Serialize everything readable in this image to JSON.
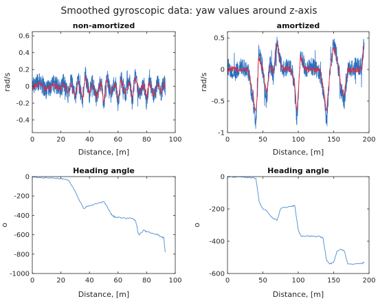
{
  "figure_title": "Smoothed gyroscopic data: yaw values around z-axis",
  "colors": {
    "raw": "#2a6fbe",
    "smoothed": "#e8283c",
    "heading": "#5a95d6",
    "axes": "#262626"
  },
  "chart_data": [
    {
      "type": "line",
      "title": "non-amortized",
      "xlabel": "Distance, [m]",
      "ylabel": "rad/s",
      "xlim": [
        0,
        100
      ],
      "ylim": [
        -0.55,
        0.65
      ],
      "xticks": [
        0,
        20,
        40,
        60,
        80,
        100
      ],
      "yticks": [
        -0.4,
        -0.2,
        0,
        0.2,
        0.4,
        0.6
      ],
      "ytick_labels": [
        "-0.4",
        "-0.2",
        "0",
        "0.2",
        "0.4",
        "0.6"
      ],
      "grid": false,
      "series": [
        {
          "x": [
            0,
            5,
            10,
            15,
            20,
            22,
            25,
            27,
            30,
            32,
            35,
            37,
            40,
            42,
            45,
            48,
            50,
            52,
            55,
            58,
            60,
            62,
            65,
            68,
            70,
            72,
            75,
            78,
            80,
            82,
            85,
            88,
            90,
            92,
            93
          ],
          "y": [
            0.02,
            0.05,
            -0.05,
            0.03,
            -0.04,
            0.06,
            -0.1,
            0.08,
            -0.15,
            0.1,
            -0.2,
            0.15,
            -0.1,
            0.05,
            -0.15,
            0.08,
            -0.25,
            0.12,
            -0.1,
            0.06,
            -0.2,
            0.1,
            -0.1,
            0.08,
            -0.2,
            0.15,
            -0.1,
            0.05,
            -0.2,
            0.1,
            -0.15,
            0.08,
            -0.1,
            0.05,
            0.0
          ]
        },
        {
          "x": [
            0,
            5,
            10,
            15,
            20,
            22,
            25,
            27,
            30,
            32,
            35,
            37,
            40,
            42,
            45,
            48,
            50,
            52,
            55,
            58,
            60,
            62,
            65,
            68,
            70,
            72,
            75,
            78,
            80,
            82,
            85,
            88,
            90,
            92,
            93
          ],
          "y": [
            0.0,
            0.03,
            -0.03,
            0.02,
            -0.02,
            0.04,
            -0.08,
            0.05,
            -0.12,
            0.07,
            -0.15,
            0.1,
            -0.08,
            0.03,
            -0.12,
            0.05,
            -0.2,
            0.08,
            -0.08,
            0.04,
            -0.15,
            0.07,
            -0.08,
            0.05,
            -0.15,
            0.1,
            -0.08,
            0.03,
            -0.15,
            0.07,
            -0.12,
            0.05,
            -0.08,
            0.03,
            0.0
          ]
        }
      ]
    },
    {
      "type": "line",
      "title": "amortized",
      "xlabel": "Distance, [m]",
      "ylabel": "rad/s",
      "xlim": [
        0,
        200
      ],
      "ylim": [
        -1,
        0.6
      ],
      "xticks": [
        0,
        50,
        100,
        150,
        200
      ],
      "yticks": [
        -1,
        -0.5,
        0,
        0.5
      ],
      "ytick_labels": [
        "-1",
        "-0.5",
        "0",
        "0.5"
      ],
      "grid": false,
      "series": [
        {
          "x": [
            0,
            10,
            20,
            30,
            40,
            42,
            44,
            50,
            55,
            60,
            65,
            70,
            75,
            80,
            90,
            95,
            98,
            100,
            103,
            110,
            120,
            130,
            135,
            140,
            145,
            150,
            155,
            160,
            165,
            170,
            180,
            190,
            193
          ],
          "y": [
            0.05,
            -0.05,
            0.05,
            -0.05,
            -0.85,
            -0.5,
            0.3,
            0.0,
            -0.5,
            0.1,
            -0.1,
            0.5,
            0.1,
            0.0,
            0.05,
            -0.3,
            -0.8,
            -0.4,
            0.3,
            0.0,
            0.05,
            -0.05,
            -0.3,
            -0.8,
            0.0,
            0.4,
            0.2,
            -0.3,
            -0.5,
            0.0,
            0.05,
            0.05,
            0.45
          ]
        },
        {
          "x": [
            0,
            10,
            20,
            30,
            40,
            42,
            44,
            50,
            55,
            60,
            65,
            70,
            75,
            80,
            90,
            95,
            98,
            100,
            103,
            110,
            120,
            130,
            135,
            140,
            145,
            150,
            155,
            160,
            165,
            170,
            180,
            190,
            193
          ],
          "y": [
            0.0,
            0.0,
            0.0,
            0.0,
            -0.7,
            -0.45,
            0.2,
            0.0,
            -0.4,
            0.05,
            -0.05,
            0.45,
            0.05,
            0.0,
            0.0,
            -0.25,
            -0.7,
            -0.35,
            0.2,
            0.0,
            0.0,
            0.0,
            -0.25,
            -0.7,
            0.0,
            0.35,
            0.15,
            -0.25,
            -0.4,
            0.0,
            0.0,
            0.0,
            0.4
          ]
        }
      ]
    },
    {
      "type": "line",
      "title": "Heading angle",
      "xlabel": "Distance, [m]",
      "ylabel": "o",
      "xlim": [
        0,
        100
      ],
      "ylim": [
        -1000,
        0
      ],
      "xticks": [
        0,
        20,
        40,
        60,
        80,
        100
      ],
      "yticks": [
        -1000,
        -800,
        -600,
        -400,
        -200,
        0
      ],
      "ytick_labels": [
        "-1000",
        "-800",
        "-600",
        "-400",
        "-200",
        "0"
      ],
      "grid": false,
      "series": [
        {
          "x": [
            0,
            2,
            5,
            10,
            15,
            20,
            24,
            26,
            28,
            30,
            33,
            35,
            36,
            38,
            40,
            45,
            50,
            52,
            55,
            56,
            58,
            60,
            65,
            70,
            72,
            73,
            74,
            75,
            78,
            80,
            85,
            88,
            90,
            92,
            93
          ],
          "y": [
            0,
            -5,
            -10,
            -12,
            -15,
            -20,
            -30,
            -50,
            -100,
            -150,
            -250,
            -300,
            -330,
            -310,
            -300,
            -280,
            -260,
            -300,
            -380,
            -400,
            -420,
            -420,
            -430,
            -430,
            -450,
            -500,
            -580,
            -600,
            -550,
            -570,
            -590,
            -600,
            -620,
            -630,
            -780
          ]
        }
      ]
    },
    {
      "type": "line",
      "title": "Heading angle",
      "xlabel": "Distance, [m]",
      "ylabel": "o",
      "xlim": [
        0,
        200
      ],
      "ylim": [
        -600,
        0
      ],
      "xticks": [
        0,
        50,
        100,
        150,
        200
      ],
      "yticks": [
        -600,
        -400,
        -200,
        0
      ],
      "ytick_labels": [
        "-600",
        "-400",
        "-200",
        "0"
      ],
      "grid": false,
      "series": [
        {
          "x": [
            0,
            10,
            20,
            30,
            40,
            45,
            50,
            55,
            60,
            65,
            70,
            75,
            80,
            90,
            95,
            100,
            103,
            105,
            110,
            120,
            130,
            135,
            140,
            145,
            150,
            155,
            160,
            165,
            170,
            180,
            190,
            193
          ],
          "y": [
            0,
            -2,
            -3,
            -5,
            -10,
            -160,
            -200,
            -210,
            -240,
            -260,
            -270,
            -200,
            -190,
            -185,
            -180,
            -330,
            -360,
            -370,
            -370,
            -370,
            -370,
            -380,
            -520,
            -540,
            -530,
            -460,
            -450,
            -460,
            -540,
            -540,
            -540,
            -530
          ]
        }
      ]
    }
  ]
}
